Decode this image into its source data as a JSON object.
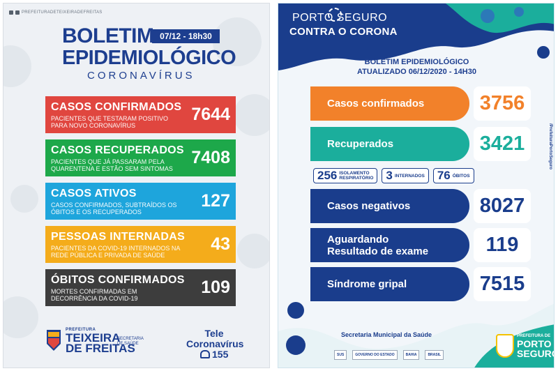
{
  "left": {
    "social_handle": "PREFEITURADETEIXEIRADEFREITAS",
    "title_line1": "BOLETIM",
    "title_line2": "EPIDEMIOLÓGICO",
    "subtitle": "CORONAVÍRUS",
    "date": "07/12 - 18h30",
    "cards": [
      {
        "title": "CASOS CONFIRMADOS",
        "description": "PACIENTES QUE TESTARAM POSITIVO PARA NOVO CORONAVÍRUS",
        "value": "7644"
      },
      {
        "title": "CASOS RECUPERADOS",
        "description": "PACIENTES QUE JÁ PASSARAM PELA QUARENTENA E ESTÃO SEM SINTOMAS",
        "value": "7408"
      },
      {
        "title": "CASOS ATIVOS",
        "description": "CASOS CONFIRMADOS, SUBTRAÍDOS OS ÓBITOS E OS RECUPERADOS",
        "value": "127"
      },
      {
        "title": "PESSOAS INTERNADAS",
        "description": "PACIENTES DA COVID-19 INTERNADOS NA REDE PÚBLICA E PRIVADA DE SAÚDE",
        "value": "43"
      },
      {
        "title": "ÓBITOS CONFIRMADOS",
        "description": "MORTES CONFIRMADAS EM DECORRÊNCIA DA COVID-19",
        "value": "109"
      }
    ],
    "footer": {
      "prefeitura": "PREFEITURA",
      "city_line1": "TEIXEIRA",
      "city_line2": "DE FREITAS",
      "secretaria": "SECRETARIA DE SAÚDE",
      "tele_line1": "Tele",
      "tele_line2": "Coronavírus",
      "tele_number": "155"
    },
    "colors": {
      "red": "#e0463f",
      "green": "#1da84a",
      "blue": "#1ea5dc",
      "yellow": "#f4ac1b",
      "dark": "#3d3d3d",
      "brand": "#1d3e8f"
    }
  },
  "right": {
    "brand_line1": "PORTO SEGURO",
    "brand_line2": "CONTRA O CORONA",
    "bulletin_title": "BOLETIM EPIDEMIOLÓGICO",
    "bulletin_updated": "ATUALIZADO 06/12/2020 - 14H30",
    "cards": [
      {
        "label": "Casos confirmados",
        "value": "3756"
      },
      {
        "label": "Recuperados",
        "value": "3421"
      },
      {
        "label": "Casos negativos",
        "value": "8027"
      },
      {
        "label_line1": "Aguardando",
        "label_line2": "Resultado de exame",
        "value": "119"
      },
      {
        "label": "Síndrome gripal",
        "value": "7515"
      }
    ],
    "mini": [
      {
        "value": "256",
        "line1": "ISOLAMENTO",
        "line2": "RESPIRATÓRIO"
      },
      {
        "value": "3",
        "line1": "INTERNADOS",
        "line2": ""
      },
      {
        "value": "76",
        "line1": "ÓBITOS",
        "line2": ""
      }
    ],
    "side_handle": "/PrefeituraPortoSeguro",
    "footer": {
      "secretaria": "Secretaria Municipal da Saúde",
      "logos": [
        "SUS",
        "GOVERNO DO ESTADO",
        "BAHIA",
        "BRASIL"
      ],
      "pref_small": "PREFEITURA DE",
      "pref_line1": "PORTO",
      "pref_line2": "SEGURO"
    },
    "colors": {
      "orange": "#f2812a",
      "teal": "#1bae9c",
      "navy": "#1a3d8c"
    }
  }
}
